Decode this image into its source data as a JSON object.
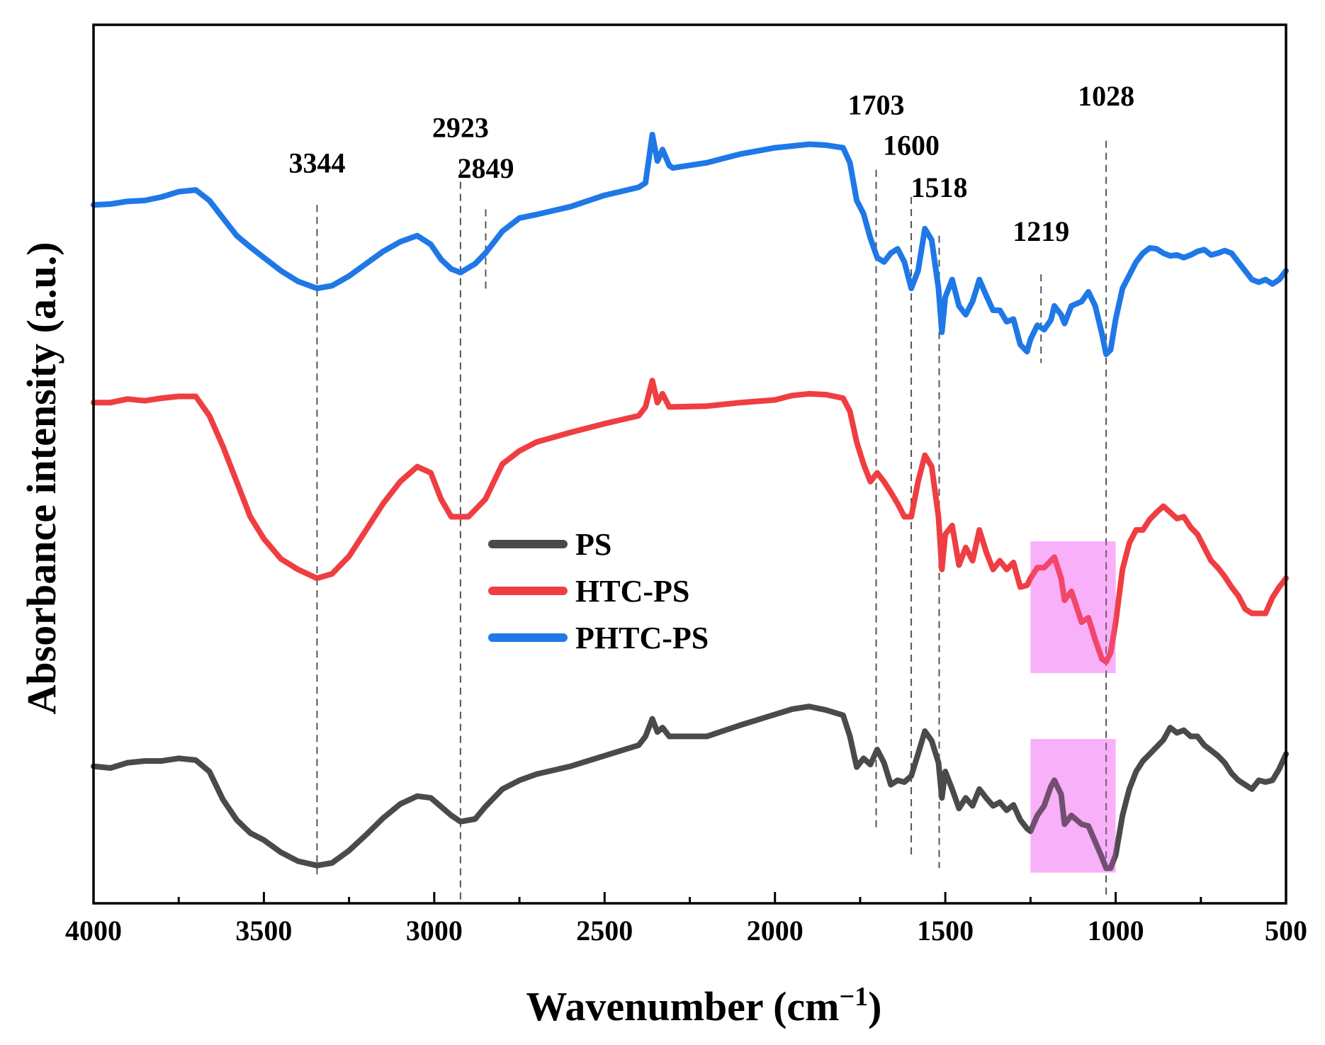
{
  "chart_data": {
    "type": "line",
    "title": "",
    "xlabel_main": "Wavenumber (cm",
    "xlabel_sup": "−1",
    "xlabel_close": ")",
    "ylabel": "Absorbance intensity (a.u.)",
    "xlim": [
      4000,
      500
    ],
    "ylim": [
      0,
      1
    ],
    "x_inverted": true,
    "y_ticks_visible": false,
    "grid": false,
    "legend_position": "center",
    "x_ticks": [
      {
        "value": 4000,
        "label": "4000"
      },
      {
        "value": 3500,
        "label": "3500"
      },
      {
        "value": 3000,
        "label": "3000"
      },
      {
        "value": 2500,
        "label": "2500"
      },
      {
        "value": 2000,
        "label": "2000"
      },
      {
        "value": 1500,
        "label": "1500"
      },
      {
        "value": 1000,
        "label": "1000"
      },
      {
        "value": 500,
        "label": "500"
      }
    ],
    "peak_annotations": [
      {
        "x": 3344,
        "label": "3344",
        "line_top": 0.795,
        "line_bottom": 0.03,
        "label_y": 0.832
      },
      {
        "x": 2923,
        "label": "2923",
        "line_top": 0.835,
        "line_bottom": 0.003,
        "label_y": 0.872
      },
      {
        "x": 2849,
        "label": "2849",
        "line_top": 0.79,
        "line_bottom": 0.695,
        "label_y": 0.826
      },
      {
        "x": 1703,
        "label": "1703",
        "line_top": 0.835,
        "line_bottom": 0.085,
        "label_y": 0.898
      },
      {
        "x": 1600,
        "label": "1600",
        "line_top": 0.804,
        "line_bottom": 0.05,
        "label_y": 0.852
      },
      {
        "x": 1518,
        "label": "1518",
        "line_top": 0.76,
        "line_bottom": 0.04,
        "label_y": 0.804
      },
      {
        "x": 1219,
        "label": "1219",
        "line_top": 0.716,
        "line_bottom": 0.615,
        "label_y": 0.754
      },
      {
        "x": 1028,
        "label": "1028",
        "line_top": 0.868,
        "line_bottom": 0.01,
        "label_y": 0.908
      }
    ],
    "highlight_regions": [
      {
        "x_start": 1250,
        "x_end": 1000,
        "y_low": 0.262,
        "y_high": 0.412
      },
      {
        "x_start": 1250,
        "x_end": 1000,
        "y_low": 0.035,
        "y_high": 0.187
      }
    ],
    "series": [
      {
        "name": "PS",
        "color": "#4a4a4a",
        "x": [
          4000,
          3950,
          3900,
          3850,
          3800,
          3750,
          3700,
          3660,
          3620,
          3580,
          3540,
          3500,
          3450,
          3400,
          3344,
          3300,
          3250,
          3200,
          3150,
          3100,
          3050,
          3010,
          2980,
          2950,
          2923,
          2880,
          2850,
          2800,
          2750,
          2700,
          2600,
          2500,
          2400,
          2380,
          2360,
          2345,
          2330,
          2310,
          2300,
          2200,
          2100,
          2000,
          1950,
          1900,
          1850,
          1800,
          1780,
          1760,
          1740,
          1720,
          1700,
          1680,
          1660,
          1640,
          1620,
          1600,
          1580,
          1560,
          1540,
          1520,
          1510,
          1500,
          1480,
          1460,
          1440,
          1420,
          1400,
          1380,
          1360,
          1340,
          1320,
          1300,
          1280,
          1260,
          1250,
          1230,
          1210,
          1190,
          1180,
          1160,
          1150,
          1130,
          1100,
          1080,
          1060,
          1040,
          1028,
          1015,
          1000,
          980,
          960,
          940,
          920,
          900,
          880,
          860,
          840,
          820,
          800,
          780,
          760,
          740,
          720,
          700,
          680,
          660,
          640,
          620,
          600,
          580,
          560,
          540,
          520,
          500
        ],
        "values": [
          0.156,
          0.154,
          0.16,
          0.162,
          0.162,
          0.165,
          0.163,
          0.15,
          0.118,
          0.095,
          0.08,
          0.072,
          0.058,
          0.048,
          0.043,
          0.046,
          0.06,
          0.078,
          0.097,
          0.113,
          0.122,
          0.12,
          0.11,
          0.1,
          0.093,
          0.096,
          0.11,
          0.13,
          0.14,
          0.147,
          0.156,
          0.168,
          0.18,
          0.19,
          0.21,
          0.195,
          0.2,
          0.19,
          0.19,
          0.19,
          0.203,
          0.215,
          0.221,
          0.224,
          0.22,
          0.214,
          0.19,
          0.155,
          0.165,
          0.158,
          0.175,
          0.16,
          0.135,
          0.14,
          0.138,
          0.145,
          0.17,
          0.196,
          0.185,
          0.16,
          0.12,
          0.15,
          0.13,
          0.108,
          0.12,
          0.111,
          0.13,
          0.12,
          0.111,
          0.115,
          0.106,
          0.112,
          0.095,
          0.085,
          0.082,
          0.1,
          0.111,
          0.133,
          0.14,
          0.124,
          0.09,
          0.1,
          0.09,
          0.088,
          0.07,
          0.052,
          0.04,
          0.04,
          0.055,
          0.1,
          0.13,
          0.15,
          0.162,
          0.17,
          0.178,
          0.186,
          0.2,
          0.194,
          0.197,
          0.19,
          0.19,
          0.18,
          0.174,
          0.168,
          0.16,
          0.148,
          0.14,
          0.135,
          0.13,
          0.14,
          0.138,
          0.14,
          0.153,
          0.17
        ]
      },
      {
        "name": "HTC-PS",
        "color": "#ef3e42",
        "x": [
          4000,
          3950,
          3900,
          3850,
          3800,
          3750,
          3700,
          3660,
          3620,
          3580,
          3540,
          3500,
          3450,
          3400,
          3344,
          3300,
          3250,
          3200,
          3150,
          3100,
          3050,
          3010,
          2980,
          2950,
          2900,
          2880,
          2850,
          2800,
          2750,
          2700,
          2600,
          2500,
          2400,
          2380,
          2360,
          2345,
          2330,
          2310,
          2300,
          2200,
          2100,
          2000,
          1950,
          1900,
          1850,
          1800,
          1780,
          1760,
          1740,
          1720,
          1700,
          1680,
          1660,
          1640,
          1620,
          1600,
          1580,
          1560,
          1540,
          1520,
          1510,
          1500,
          1480,
          1460,
          1440,
          1420,
          1400,
          1380,
          1360,
          1340,
          1320,
          1300,
          1280,
          1260,
          1250,
          1230,
          1210,
          1190,
          1180,
          1160,
          1150,
          1130,
          1100,
          1080,
          1060,
          1040,
          1028,
          1015,
          1000,
          980,
          960,
          940,
          920,
          900,
          880,
          860,
          840,
          820,
          800,
          780,
          760,
          740,
          720,
          700,
          680,
          660,
          640,
          620,
          600,
          580,
          560,
          540,
          520,
          500
        ],
        "values": [
          0.57,
          0.57,
          0.574,
          0.572,
          0.575,
          0.577,
          0.577,
          0.555,
          0.52,
          0.48,
          0.44,
          0.415,
          0.392,
          0.38,
          0.37,
          0.375,
          0.395,
          0.425,
          0.455,
          0.48,
          0.497,
          0.49,
          0.46,
          0.44,
          0.44,
          0.448,
          0.46,
          0.5,
          0.515,
          0.525,
          0.536,
          0.546,
          0.555,
          0.565,
          0.595,
          0.57,
          0.58,
          0.565,
          0.565,
          0.566,
          0.57,
          0.573,
          0.578,
          0.58,
          0.579,
          0.575,
          0.56,
          0.525,
          0.5,
          0.48,
          0.49,
          0.48,
          0.468,
          0.455,
          0.44,
          0.44,
          0.48,
          0.51,
          0.497,
          0.44,
          0.38,
          0.42,
          0.43,
          0.385,
          0.405,
          0.39,
          0.425,
          0.4,
          0.38,
          0.39,
          0.38,
          0.388,
          0.36,
          0.362,
          0.37,
          0.382,
          0.382,
          0.39,
          0.394,
          0.37,
          0.345,
          0.355,
          0.32,
          0.325,
          0.3,
          0.278,
          0.275,
          0.285,
          0.32,
          0.38,
          0.41,
          0.425,
          0.425,
          0.437,
          0.445,
          0.452,
          0.445,
          0.438,
          0.44,
          0.428,
          0.42,
          0.405,
          0.39,
          0.382,
          0.372,
          0.36,
          0.35,
          0.335,
          0.33,
          0.33,
          0.33,
          0.348,
          0.36,
          0.37
        ]
      },
      {
        "name": "PHTC-PS",
        "color": "#1f78e6",
        "x": [
          4000,
          3950,
          3900,
          3850,
          3800,
          3750,
          3700,
          3660,
          3620,
          3580,
          3540,
          3500,
          3450,
          3400,
          3344,
          3300,
          3250,
          3200,
          3150,
          3100,
          3050,
          3010,
          2980,
          2950,
          2923,
          2880,
          2850,
          2800,
          2750,
          2700,
          2600,
          2500,
          2400,
          2380,
          2360,
          2345,
          2330,
          2310,
          2300,
          2200,
          2100,
          2000,
          1950,
          1900,
          1850,
          1800,
          1780,
          1760,
          1740,
          1720,
          1700,
          1680,
          1660,
          1640,
          1620,
          1600,
          1580,
          1560,
          1540,
          1520,
          1510,
          1500,
          1480,
          1460,
          1440,
          1420,
          1400,
          1380,
          1360,
          1340,
          1320,
          1300,
          1280,
          1260,
          1250,
          1230,
          1210,
          1190,
          1180,
          1160,
          1150,
          1130,
          1100,
          1080,
          1060,
          1040,
          1028,
          1015,
          1000,
          980,
          960,
          940,
          920,
          900,
          880,
          860,
          840,
          820,
          800,
          780,
          760,
          740,
          720,
          700,
          680,
          660,
          640,
          620,
          600,
          580,
          560,
          540,
          520,
          500
        ],
        "values": [
          0.795,
          0.796,
          0.799,
          0.8,
          0.804,
          0.81,
          0.812,
          0.8,
          0.78,
          0.76,
          0.747,
          0.735,
          0.72,
          0.708,
          0.7,
          0.703,
          0.714,
          0.728,
          0.742,
          0.753,
          0.76,
          0.75,
          0.733,
          0.722,
          0.718,
          0.728,
          0.74,
          0.765,
          0.78,
          0.784,
          0.793,
          0.806,
          0.815,
          0.82,
          0.875,
          0.845,
          0.858,
          0.84,
          0.837,
          0.843,
          0.853,
          0.86,
          0.862,
          0.864,
          0.863,
          0.86,
          0.843,
          0.8,
          0.785,
          0.757,
          0.735,
          0.73,
          0.74,
          0.745,
          0.73,
          0.7,
          0.72,
          0.768,
          0.755,
          0.7,
          0.65,
          0.69,
          0.71,
          0.68,
          0.67,
          0.685,
          0.71,
          0.692,
          0.675,
          0.675,
          0.662,
          0.665,
          0.636,
          0.628,
          0.642,
          0.658,
          0.653,
          0.664,
          0.68,
          0.67,
          0.66,
          0.68,
          0.685,
          0.696,
          0.68,
          0.648,
          0.625,
          0.63,
          0.665,
          0.7,
          0.715,
          0.73,
          0.74,
          0.746,
          0.745,
          0.74,
          0.737,
          0.738,
          0.735,
          0.738,
          0.742,
          0.744,
          0.738,
          0.74,
          0.743,
          0.74,
          0.73,
          0.72,
          0.71,
          0.707,
          0.71,
          0.705,
          0.71,
          0.72
        ]
      }
    ]
  }
}
